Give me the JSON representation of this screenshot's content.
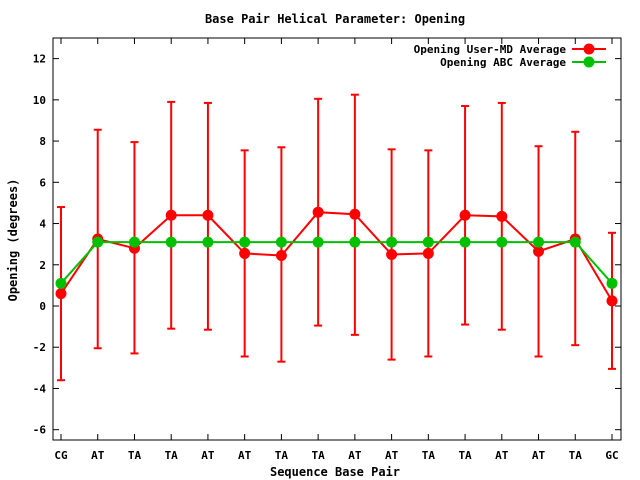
{
  "chart_data": {
    "type": "line",
    "title": "Base Pair Helical Parameter: Opening",
    "xlabel": "Sequence Base Pair",
    "ylabel": "Opening (degrees)",
    "categories": [
      "CG",
      "AT",
      "TA",
      "TA",
      "AT",
      "AT",
      "TA",
      "TA",
      "AT",
      "AT",
      "TA",
      "TA",
      "AT",
      "AT",
      "TA",
      "GC"
    ],
    "ylim": [
      -6.5,
      13
    ],
    "yticks": [
      -6,
      -4,
      -2,
      0,
      2,
      4,
      6,
      8,
      10,
      12
    ],
    "ytick_labels": [
      "-6",
      "-4",
      "-2",
      "0",
      "2",
      "4",
      "6",
      "8",
      "10",
      "12"
    ],
    "legend_position": "top-right",
    "series": [
      {
        "name": "Opening User-MD Average",
        "color": "#ff0000",
        "values": [
          0.6,
          3.25,
          2.8,
          4.4,
          4.4,
          2.55,
          2.45,
          4.55,
          4.45,
          2.5,
          2.55,
          4.4,
          4.35,
          2.65,
          3.25,
          0.25
        ],
        "error_low": [
          -3.6,
          -2.05,
          -2.3,
          -1.1,
          -1.15,
          -2.45,
          -2.7,
          -0.95,
          -1.4,
          -2.6,
          -2.45,
          -0.9,
          -1.15,
          -2.45,
          -1.9,
          -3.05
        ],
        "error_high": [
          4.8,
          8.55,
          7.95,
          9.9,
          9.85,
          7.55,
          7.7,
          10.05,
          10.25,
          7.6,
          7.55,
          9.7,
          9.85,
          7.75,
          8.45,
          3.55
        ]
      },
      {
        "name": "Opening ABC Average",
        "color": "#00c000",
        "values": [
          1.1,
          3.1,
          3.1,
          3.1,
          3.1,
          3.1,
          3.1,
          3.1,
          3.1,
          3.1,
          3.1,
          3.1,
          3.1,
          3.1,
          3.1,
          1.1
        ]
      }
    ]
  }
}
